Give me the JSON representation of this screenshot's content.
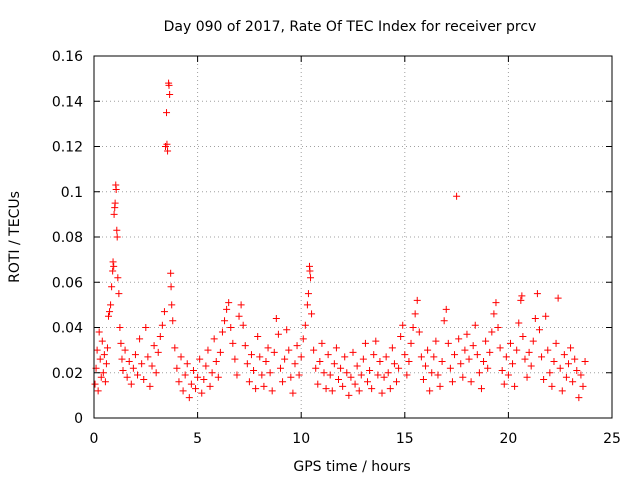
{
  "chart_data": {
    "type": "scatter",
    "title": "Day 090 of 2017, Rate Of TEC Index for receiver prcv",
    "xlabel": "GPS time / hours",
    "ylabel": "ROTI / TECUs",
    "xlim": [
      0,
      25
    ],
    "ylim": [
      0,
      0.16
    ],
    "xticks": [
      0,
      5,
      10,
      15,
      20,
      25
    ],
    "xtick_labels": [
      "0",
      "5",
      "10",
      "15",
      "20",
      "25"
    ],
    "yticks": [
      0,
      0.02,
      0.04,
      0.06,
      0.08,
      0.1,
      0.12,
      0.14,
      0.16
    ],
    "ytick_labels": [
      "0",
      "0.02",
      "0.04",
      "0.06",
      "0.08",
      "0.1",
      "0.12",
      "0.14",
      "0.16"
    ],
    "grid": true,
    "marker": "+",
    "color": "#ff0000",
    "series": [
      {
        "name": "ROTI",
        "points": [
          [
            0.05,
            0.015
          ],
          [
            0.1,
            0.022
          ],
          [
            0.15,
            0.03
          ],
          [
            0.2,
            0.012
          ],
          [
            0.25,
            0.038
          ],
          [
            0.3,
            0.026
          ],
          [
            0.35,
            0.018
          ],
          [
            0.4,
            0.034
          ],
          [
            0.45,
            0.02
          ],
          [
            0.5,
            0.028
          ],
          [
            0.55,
            0.016
          ],
          [
            0.6,
            0.024
          ],
          [
            0.65,
            0.031
          ],
          [
            0.7,
            0.045
          ],
          [
            0.75,
            0.047
          ],
          [
            0.8,
            0.05
          ],
          [
            0.85,
            0.058
          ],
          [
            0.9,
            0.065
          ],
          [
            0.92,
            0.069
          ],
          [
            0.95,
            0.067
          ],
          [
            0.97,
            0.09
          ],
          [
            1.0,
            0.093
          ],
          [
            1.02,
            0.095
          ],
          [
            1.05,
            0.103
          ],
          [
            1.07,
            0.101
          ],
          [
            1.1,
            0.083
          ],
          [
            1.12,
            0.08
          ],
          [
            1.15,
            0.062
          ],
          [
            1.2,
            0.055
          ],
          [
            1.25,
            0.04
          ],
          [
            1.3,
            0.033
          ],
          [
            1.35,
            0.026
          ],
          [
            1.4,
            0.021
          ],
          [
            1.5,
            0.03
          ],
          [
            1.6,
            0.018
          ],
          [
            1.7,
            0.025
          ],
          [
            1.8,
            0.015
          ],
          [
            1.9,
            0.022
          ],
          [
            2.0,
            0.028
          ],
          [
            2.1,
            0.019
          ],
          [
            2.2,
            0.035
          ],
          [
            2.3,
            0.024
          ],
          [
            2.4,
            0.017
          ],
          [
            2.5,
            0.04
          ],
          [
            2.6,
            0.027
          ],
          [
            2.7,
            0.014
          ],
          [
            2.8,
            0.023
          ],
          [
            2.9,
            0.032
          ],
          [
            3.0,
            0.02
          ],
          [
            3.1,
            0.029
          ],
          [
            3.2,
            0.036
          ],
          [
            3.3,
            0.041
          ],
          [
            3.4,
            0.047
          ],
          [
            3.45,
            0.12
          ],
          [
            3.5,
            0.135
          ],
          [
            3.52,
            0.121
          ],
          [
            3.55,
            0.118
          ],
          [
            3.6,
            0.148
          ],
          [
            3.62,
            0.147
          ],
          [
            3.65,
            0.143
          ],
          [
            3.7,
            0.064
          ],
          [
            3.72,
            0.058
          ],
          [
            3.75,
            0.05
          ],
          [
            3.8,
            0.043
          ],
          [
            3.9,
            0.031
          ],
          [
            4.0,
            0.022
          ],
          [
            4.1,
            0.016
          ],
          [
            4.2,
            0.027
          ],
          [
            4.3,
            0.012
          ],
          [
            4.4,
            0.019
          ],
          [
            4.5,
            0.024
          ],
          [
            4.6,
            0.009
          ],
          [
            4.7,
            0.015
          ],
          [
            4.8,
            0.021
          ],
          [
            4.9,
            0.013
          ],
          [
            5.0,
            0.018
          ],
          [
            5.1,
            0.026
          ],
          [
            5.2,
            0.011
          ],
          [
            5.3,
            0.017
          ],
          [
            5.4,
            0.023
          ],
          [
            5.5,
            0.03
          ],
          [
            5.6,
            0.014
          ],
          [
            5.7,
            0.02
          ],
          [
            5.8,
            0.035
          ],
          [
            5.9,
            0.025
          ],
          [
            6.0,
            0.018
          ],
          [
            6.1,
            0.029
          ],
          [
            6.2,
            0.038
          ],
          [
            6.3,
            0.043
          ],
          [
            6.4,
            0.048
          ],
          [
            6.5,
            0.051
          ],
          [
            6.6,
            0.04
          ],
          [
            6.7,
            0.033
          ],
          [
            6.8,
            0.026
          ],
          [
            6.9,
            0.019
          ],
          [
            7.0,
            0.045
          ],
          [
            7.1,
            0.05
          ],
          [
            7.2,
            0.041
          ],
          [
            7.3,
            0.032
          ],
          [
            7.4,
            0.024
          ],
          [
            7.5,
            0.016
          ],
          [
            7.6,
            0.028
          ],
          [
            7.7,
            0.021
          ],
          [
            7.8,
            0.013
          ],
          [
            7.9,
            0.036
          ],
          [
            8.0,
            0.027
          ],
          [
            8.1,
            0.019
          ],
          [
            8.2,
            0.014
          ],
          [
            8.3,
            0.025
          ],
          [
            8.4,
            0.031
          ],
          [
            8.5,
            0.02
          ],
          [
            8.6,
            0.012
          ],
          [
            8.7,
            0.029
          ],
          [
            8.8,
            0.044
          ],
          [
            8.9,
            0.037
          ],
          [
            9.0,
            0.022
          ],
          [
            9.1,
            0.016
          ],
          [
            9.2,
            0.026
          ],
          [
            9.3,
            0.039
          ],
          [
            9.4,
            0.03
          ],
          [
            9.5,
            0.018
          ],
          [
            9.6,
            0.011
          ],
          [
            9.7,
            0.024
          ],
          [
            9.8,
            0.032
          ],
          [
            9.9,
            0.019
          ],
          [
            10.0,
            0.027
          ],
          [
            10.1,
            0.035
          ],
          [
            10.2,
            0.041
          ],
          [
            10.3,
            0.05
          ],
          [
            10.35,
            0.055
          ],
          [
            10.4,
            0.067
          ],
          [
            10.42,
            0.065
          ],
          [
            10.45,
            0.062
          ],
          [
            10.5,
            0.046
          ],
          [
            10.6,
            0.03
          ],
          [
            10.7,
            0.022
          ],
          [
            10.8,
            0.015
          ],
          [
            10.9,
            0.025
          ],
          [
            11.0,
            0.033
          ],
          [
            11.1,
            0.02
          ],
          [
            11.2,
            0.013
          ],
          [
            11.3,
            0.028
          ],
          [
            11.4,
            0.019
          ],
          [
            11.5,
            0.012
          ],
          [
            11.6,
            0.024
          ],
          [
            11.7,
            0.031
          ],
          [
            11.8,
            0.017
          ],
          [
            11.9,
            0.022
          ],
          [
            12.0,
            0.014
          ],
          [
            12.1,
            0.027
          ],
          [
            12.2,
            0.02
          ],
          [
            12.3,
            0.01
          ],
          [
            12.4,
            0.018
          ],
          [
            12.5,
            0.029
          ],
          [
            12.6,
            0.015
          ],
          [
            12.7,
            0.023
          ],
          [
            12.8,
            0.012
          ],
          [
            12.9,
            0.019
          ],
          [
            13.0,
            0.026
          ],
          [
            13.1,
            0.033
          ],
          [
            13.2,
            0.016
          ],
          [
            13.3,
            0.021
          ],
          [
            13.4,
            0.013
          ],
          [
            13.5,
            0.028
          ],
          [
            13.6,
            0.034
          ],
          [
            13.7,
            0.019
          ],
          [
            13.8,
            0.025
          ],
          [
            13.9,
            0.011
          ],
          [
            14.0,
            0.018
          ],
          [
            14.1,
            0.027
          ],
          [
            14.2,
            0.02
          ],
          [
            14.3,
            0.013
          ],
          [
            14.4,
            0.031
          ],
          [
            14.5,
            0.024
          ],
          [
            14.6,
            0.016
          ],
          [
            14.7,
            0.022
          ],
          [
            14.8,
            0.036
          ],
          [
            14.9,
            0.041
          ],
          [
            15.0,
            0.028
          ],
          [
            15.1,
            0.019
          ],
          [
            15.2,
            0.025
          ],
          [
            15.3,
            0.033
          ],
          [
            15.4,
            0.04
          ],
          [
            15.5,
            0.046
          ],
          [
            15.6,
            0.052
          ],
          [
            15.7,
            0.038
          ],
          [
            15.8,
            0.027
          ],
          [
            15.9,
            0.017
          ],
          [
            16.0,
            0.023
          ],
          [
            16.1,
            0.03
          ],
          [
            16.2,
            0.012
          ],
          [
            16.3,
            0.02
          ],
          [
            16.4,
            0.027
          ],
          [
            16.5,
            0.034
          ],
          [
            16.6,
            0.019
          ],
          [
            16.7,
            0.014
          ],
          [
            16.8,
            0.025
          ],
          [
            16.9,
            0.043
          ],
          [
            17.0,
            0.048
          ],
          [
            17.1,
            0.033
          ],
          [
            17.2,
            0.022
          ],
          [
            17.3,
            0.016
          ],
          [
            17.4,
            0.028
          ],
          [
            17.5,
            0.098
          ],
          [
            17.6,
            0.035
          ],
          [
            17.7,
            0.024
          ],
          [
            17.8,
            0.018
          ],
          [
            17.9,
            0.03
          ],
          [
            18.0,
            0.037
          ],
          [
            18.1,
            0.026
          ],
          [
            18.2,
            0.016
          ],
          [
            18.3,
            0.032
          ],
          [
            18.4,
            0.041
          ],
          [
            18.5,
            0.028
          ],
          [
            18.6,
            0.02
          ],
          [
            18.7,
            0.013
          ],
          [
            18.8,
            0.025
          ],
          [
            18.9,
            0.034
          ],
          [
            19.0,
            0.022
          ],
          [
            19.1,
            0.029
          ],
          [
            19.2,
            0.038
          ],
          [
            19.3,
            0.046
          ],
          [
            19.4,
            0.051
          ],
          [
            19.5,
            0.04
          ],
          [
            19.6,
            0.031
          ],
          [
            19.7,
            0.021
          ],
          [
            19.8,
            0.015
          ],
          [
            19.9,
            0.027
          ],
          [
            20.0,
            0.019
          ],
          [
            20.1,
            0.033
          ],
          [
            20.2,
            0.024
          ],
          [
            20.3,
            0.014
          ],
          [
            20.4,
            0.03
          ],
          [
            20.5,
            0.042
          ],
          [
            20.6,
            0.052
          ],
          [
            20.65,
            0.054
          ],
          [
            20.7,
            0.036
          ],
          [
            20.8,
            0.026
          ],
          [
            20.9,
            0.018
          ],
          [
            21.0,
            0.029
          ],
          [
            21.1,
            0.023
          ],
          [
            21.2,
            0.034
          ],
          [
            21.3,
            0.044
          ],
          [
            21.4,
            0.055
          ],
          [
            21.5,
            0.039
          ],
          [
            21.6,
            0.027
          ],
          [
            21.7,
            0.017
          ],
          [
            21.8,
            0.045
          ],
          [
            21.9,
            0.03
          ],
          [
            22.0,
            0.02
          ],
          [
            22.1,
            0.014
          ],
          [
            22.2,
            0.025
          ],
          [
            22.3,
            0.033
          ],
          [
            22.4,
            0.053
          ],
          [
            22.5,
            0.022
          ],
          [
            22.6,
            0.012
          ],
          [
            22.7,
            0.028
          ],
          [
            22.8,
            0.018
          ],
          [
            22.9,
            0.024
          ],
          [
            23.0,
            0.031
          ],
          [
            23.1,
            0.016
          ],
          [
            23.2,
            0.026
          ],
          [
            23.3,
            0.021
          ],
          [
            23.4,
            0.009
          ],
          [
            23.5,
            0.019
          ],
          [
            23.6,
            0.014
          ],
          [
            23.7,
            0.025
          ]
        ]
      }
    ]
  }
}
